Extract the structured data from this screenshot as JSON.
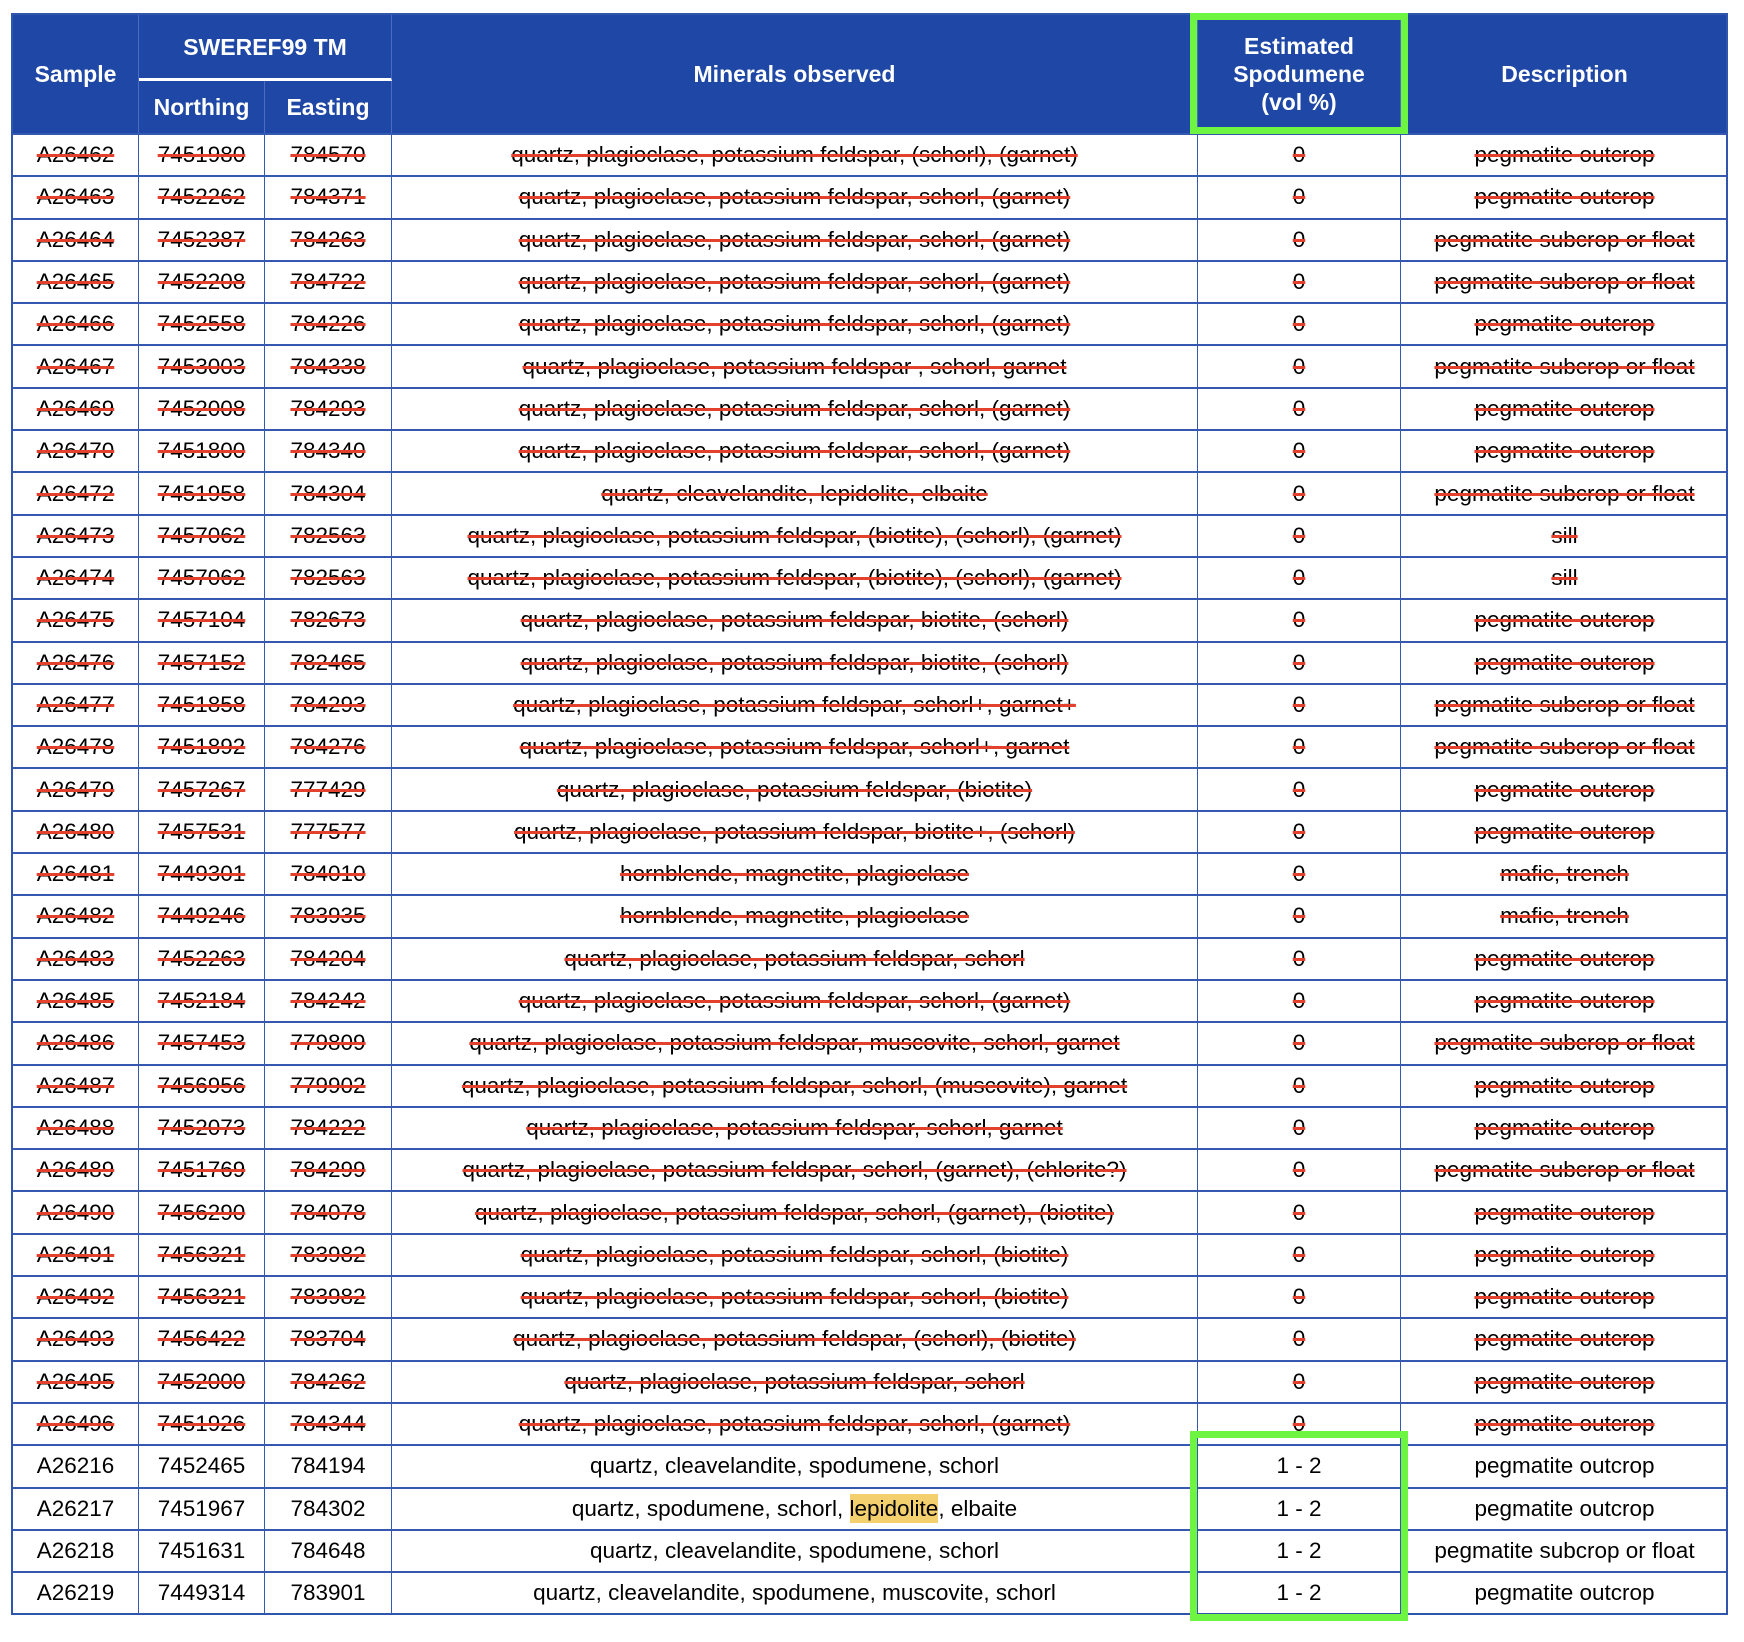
{
  "header": {
    "sample": "Sample",
    "sweref": "SWEREF99 TM",
    "northing": "Northing",
    "easting": "Easting",
    "minerals": "Minerals observed",
    "spodumene": "Estimated Spodumene (vol %)",
    "description": "Description"
  },
  "colors": {
    "header_bg": "#1e47a6",
    "strike": "#e3412e",
    "highlight_box": "#6ef542",
    "text_highlight": "#f3cf6e"
  },
  "rows": [
    {
      "sample": "A26462",
      "northing": "7451980",
      "easting": "784570",
      "minerals": "quartz, plagioclase, potassium feldspar, (schorl), (garnet)",
      "spodumene": "0",
      "description": "pegmatite outcrop",
      "struck": true
    },
    {
      "sample": "A26463",
      "northing": "7452262",
      "easting": "784371",
      "minerals": "quartz, plagioclase, potassium feldspar, schorl, (garnet)",
      "spodumene": "0",
      "description": "pegmatite outcrop",
      "struck": true
    },
    {
      "sample": "A26464",
      "northing": "7452387",
      "easting": "784263",
      "minerals": "quartz, plagioclase, potassium feldspar, schorl, (garnet)",
      "spodumene": "0",
      "description": "pegmatite subcrop or float",
      "struck": true
    },
    {
      "sample": "A26465",
      "northing": "7452208",
      "easting": "784722",
      "minerals": "quartz, plagioclase, potassium feldspar, schorl, (garnet)",
      "spodumene": "0",
      "description": "pegmatite subcrop or float",
      "struck": true
    },
    {
      "sample": "A26466",
      "northing": "7452558",
      "easting": "784226",
      "minerals": "quartz, plagioclase, potassium feldspar, schorl, (garnet)",
      "spodumene": "0",
      "description": "pegmatite outcrop",
      "struck": true
    },
    {
      "sample": "A26467",
      "northing": "7453003",
      "easting": "784338",
      "minerals": "quartz, plagioclase, potassium feldspar , schorl, garnet",
      "spodumene": "0",
      "description": "pegmatite subcrop or float",
      "struck": true
    },
    {
      "sample": "A26469",
      "northing": "7452008",
      "easting": "784293",
      "minerals": "quartz, plagioclase, potassium feldspar, schorl, (garnet)",
      "spodumene": "0",
      "description": "pegmatite outcrop",
      "struck": true
    },
    {
      "sample": "A26470",
      "northing": "7451800",
      "easting": "784340",
      "minerals": "quartz, plagioclase, potassium feldspar, schorl, (garnet)",
      "spodumene": "0",
      "description": "pegmatite outcrop",
      "struck": true
    },
    {
      "sample": "A26472",
      "northing": "7451958",
      "easting": "784304",
      "minerals": "quartz, cleavelandite, lepidolite, elbaite",
      "spodumene": "0",
      "description": "pegmatite subcrop or float",
      "struck": true
    },
    {
      "sample": "A26473",
      "northing": "7457062",
      "easting": "782563",
      "minerals": "quartz, plagioclase, potassium feldspar, (biotite), (schorl), (garnet)",
      "spodumene": "0",
      "description": "sill",
      "struck": true
    },
    {
      "sample": "A26474",
      "northing": "7457062",
      "easting": "782563",
      "minerals": "quartz, plagioclase, potassium feldspar, (biotite), (schorl), (garnet)",
      "spodumene": "0",
      "description": "sill",
      "struck": true
    },
    {
      "sample": "A26475",
      "northing": "7457104",
      "easting": "782673",
      "minerals": "quartz, plagioclase, potassium feldspar, biotite, (schorl)",
      "spodumene": "0",
      "description": "pegmatite outcrop",
      "struck": true
    },
    {
      "sample": "A26476",
      "northing": "7457152",
      "easting": "782465",
      "minerals": "quartz, plagioclase, potassium feldspar, biotite, (schorl)",
      "spodumene": "0",
      "description": "pegmatite outcrop",
      "struck": true
    },
    {
      "sample": "A26477",
      "northing": "7451858",
      "easting": "784293",
      "minerals": "quartz, plagioclase, potassium feldspar, schorl+, garnet+",
      "spodumene": "0",
      "description": "pegmatite subcrop or float",
      "struck": true
    },
    {
      "sample": "A26478",
      "northing": "7451892",
      "easting": "784276",
      "minerals": "quartz, plagioclase, potassium feldspar, schorl+, garnet",
      "spodumene": "0",
      "description": "pegmatite subcrop or float",
      "struck": true
    },
    {
      "sample": "A26479",
      "northing": "7457267",
      "easting": "777429",
      "minerals": "quartz, plagioclase, potassium feldspar, (biotite)",
      "spodumene": "0",
      "description": "pegmatite outcrop",
      "struck": true
    },
    {
      "sample": "A26480",
      "northing": "7457531",
      "easting": "777577",
      "minerals": "quartz, plagioclase, potassium feldspar, biotite+, (schorl)",
      "spodumene": "0",
      "description": "pegmatite outcrop",
      "struck": true
    },
    {
      "sample": "A26481",
      "northing": "7449301",
      "easting": "784010",
      "minerals": "hornblende, magnetite, plagioclase",
      "spodumene": "0",
      "description": "mafic, trench",
      "struck": true
    },
    {
      "sample": "A26482",
      "northing": "7449246",
      "easting": "783935",
      "minerals": "hornblende, magnetite, plagioclase",
      "spodumene": "0",
      "description": "mafic, trench",
      "struck": true
    },
    {
      "sample": "A26483",
      "northing": "7452263",
      "easting": "784204",
      "minerals": "quartz, plagioclase, potassium feldspar, schorl",
      "spodumene": "0",
      "description": "pegmatite outcrop",
      "struck": true
    },
    {
      "sample": "A26485",
      "northing": "7452184",
      "easting": "784242",
      "minerals": "quartz, plagioclase, potassium feldspar, schorl, (garnet)",
      "spodumene": "0",
      "description": "pegmatite outcrop",
      "struck": true
    },
    {
      "sample": "A26486",
      "northing": "7457453",
      "easting": "779809",
      "minerals": "quartz, plagioclase, potassium feldspar, muscovite, schorl, garnet",
      "spodumene": "0",
      "description": "pegmatite subcrop or float",
      "struck": true
    },
    {
      "sample": "A26487",
      "northing": "7456956",
      "easting": "779902",
      "minerals": "quartz, plagioclase, potassium feldspar, schorl, (muscovite), garnet",
      "spodumene": "0",
      "description": "pegmatite outcrop",
      "struck": true
    },
    {
      "sample": "A26488",
      "northing": "7452073",
      "easting": "784222",
      "minerals": "quartz, plagioclase, potassium feldspar, schorl, garnet",
      "spodumene": "0",
      "description": "pegmatite outcrop",
      "struck": true
    },
    {
      "sample": "A26489",
      "northing": "7451769",
      "easting": "784299",
      "minerals": "quartz, plagioclase, potassium feldspar, schorl, (garnet), (chlorite?)",
      "spodumene": "0",
      "description": "pegmatite subcrop or float",
      "struck": true
    },
    {
      "sample": "A26490",
      "northing": "7456290",
      "easting": "784078",
      "minerals": "quartz, plagioclase, potassium feldspar, schorl, (garnet), (biotite)",
      "spodumene": "0",
      "description": "pegmatite outcrop",
      "struck": true
    },
    {
      "sample": "A26491",
      "northing": "7456321",
      "easting": "783982",
      "minerals": "quartz, plagioclase, potassium feldspar, schorl, (biotite)",
      "spodumene": "0",
      "description": "pegmatite outcrop",
      "struck": true
    },
    {
      "sample": "A26492",
      "northing": "7456321",
      "easting": "783982",
      "minerals": "quartz, plagioclase, potassium feldspar, schorl, (biotite)",
      "spodumene": "0",
      "description": "pegmatite outcrop",
      "struck": true
    },
    {
      "sample": "A26493",
      "northing": "7456422",
      "easting": "783704",
      "minerals": "quartz, plagioclase, potassium feldspar, (schorl), (biotite)",
      "spodumene": "0",
      "description": "pegmatite outcrop",
      "struck": true
    },
    {
      "sample": "A26495",
      "northing": "7452000",
      "easting": "784262",
      "minerals": "quartz, plagioclase, potassium feldspar, schorl",
      "spodumene": "0",
      "description": "pegmatite outcrop",
      "struck": true
    },
    {
      "sample": "A26496",
      "northing": "7451926",
      "easting": "784344",
      "minerals": "quartz, plagioclase, potassium feldspar, schorl, (garnet)",
      "spodumene": "0",
      "description": "pegmatite outcrop",
      "struck": true
    },
    {
      "sample": "A26216",
      "northing": "7452465",
      "easting": "784194",
      "minerals": "quartz, cleavelandite, spodumene, schorl",
      "spodumene": "1 - 2",
      "description": "pegmatite outcrop",
      "struck": false
    },
    {
      "sample": "A26217",
      "northing": "7451967",
      "easting": "784302",
      "minerals": "quartz, spodumene, schorl, lepidolite, elbaite",
      "highlight": "lepidolite",
      "spodumene": "1 - 2",
      "description": "pegmatite outcrop",
      "struck": false
    },
    {
      "sample": "A26218",
      "northing": "7451631",
      "easting": "784648",
      "minerals": "quartz, cleavelandite, spodumene, schorl",
      "spodumene": "1 - 2",
      "description": "pegmatite subcrop or float",
      "struck": false
    },
    {
      "sample": "A26219",
      "northing": "7449314",
      "easting": "783901",
      "minerals": "quartz, cleavelandite, spodumene, muscovite, schorl",
      "spodumene": "1 - 2",
      "description": "pegmatite outcrop",
      "struck": false
    }
  ]
}
